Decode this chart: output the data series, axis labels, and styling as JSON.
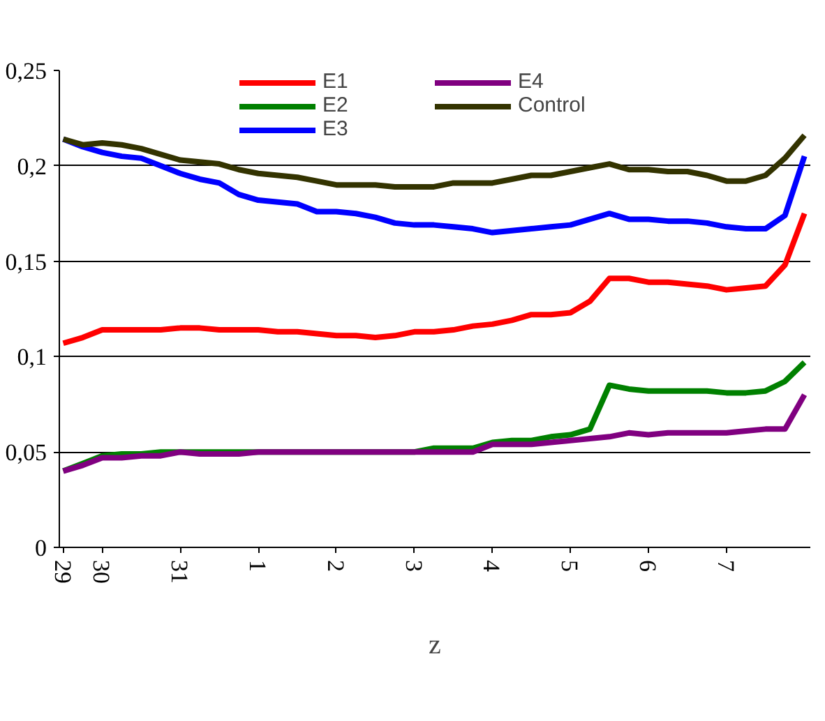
{
  "chart_data": {
    "type": "line",
    "xlabel": "z",
    "ylim": [
      0,
      0.25
    ],
    "categories": [
      "29",
      null,
      "30",
      null,
      null,
      null,
      "31",
      null,
      null,
      null,
      "1",
      null,
      null,
      null,
      "2",
      null,
      null,
      null,
      "3",
      null,
      null,
      null,
      "4",
      null,
      null,
      null,
      "5",
      null,
      null,
      null,
      "6",
      null,
      null,
      null,
      "7",
      null,
      null,
      null,
      null
    ],
    "yticks": [
      {
        "value": 0,
        "label": "0"
      },
      {
        "value": 0.05,
        "label": "0,05"
      },
      {
        "value": 0.1,
        "label": "0,1"
      },
      {
        "value": 0.15,
        "label": "0,15"
      },
      {
        "value": 0.2,
        "label": "0,2"
      },
      {
        "value": 0.25,
        "label": "0,25"
      }
    ],
    "grid": "y",
    "legend": "top",
    "marker": "none",
    "line_style": "solid",
    "series": [
      {
        "name": "E1",
        "color": "#ff0000",
        "values": [
          0.107,
          0.11,
          0.114,
          0.114,
          0.114,
          0.114,
          0.115,
          0.115,
          0.114,
          0.114,
          0.114,
          0.113,
          0.113,
          0.112,
          0.111,
          0.111,
          0.11,
          0.111,
          0.113,
          0.113,
          0.114,
          0.116,
          0.117,
          0.119,
          0.122,
          0.122,
          0.123,
          0.129,
          0.141,
          0.141,
          0.139,
          0.139,
          0.138,
          0.137,
          0.135,
          0.136,
          0.137,
          0.148,
          0.175
        ]
      },
      {
        "name": "E2",
        "color": "#008000",
        "values": [
          0.04,
          0.044,
          0.048,
          0.049,
          0.049,
          0.05,
          0.05,
          0.05,
          0.05,
          0.05,
          0.05,
          0.05,
          0.05,
          0.05,
          0.05,
          0.05,
          0.05,
          0.05,
          0.05,
          0.052,
          0.052,
          0.052,
          0.055,
          0.056,
          0.056,
          0.058,
          0.059,
          0.062,
          0.085,
          0.083,
          0.082,
          0.082,
          0.082,
          0.082,
          0.081,
          0.081,
          0.082,
          0.087,
          0.097
        ]
      },
      {
        "name": "E3",
        "color": "#0000ff",
        "values": [
          0.214,
          0.21,
          0.207,
          0.205,
          0.204,
          0.2,
          0.196,
          0.193,
          0.191,
          0.185,
          0.182,
          0.181,
          0.18,
          0.176,
          0.176,
          0.175,
          0.173,
          0.17,
          0.169,
          0.169,
          0.168,
          0.167,
          0.165,
          0.166,
          0.167,
          0.168,
          0.169,
          0.172,
          0.175,
          0.172,
          0.172,
          0.171,
          0.171,
          0.17,
          0.168,
          0.167,
          0.167,
          0.174,
          0.205
        ]
      },
      {
        "name": "E4",
        "color": "#800080",
        "values": [
          0.04,
          0.043,
          0.047,
          0.047,
          0.048,
          0.048,
          0.05,
          0.049,
          0.049,
          0.049,
          0.05,
          0.05,
          0.05,
          0.05,
          0.05,
          0.05,
          0.05,
          0.05,
          0.05,
          0.05,
          0.05,
          0.05,
          0.054,
          0.054,
          0.054,
          0.055,
          0.056,
          0.057,
          0.058,
          0.06,
          0.059,
          0.06,
          0.06,
          0.06,
          0.06,
          0.061,
          0.062,
          0.062,
          0.08
        ]
      },
      {
        "name": "Control",
        "color": "#333300",
        "values": [
          0.214,
          0.211,
          0.212,
          0.211,
          0.209,
          0.206,
          0.203,
          0.202,
          0.201,
          0.198,
          0.196,
          0.195,
          0.194,
          0.192,
          0.19,
          0.19,
          0.19,
          0.189,
          0.189,
          0.189,
          0.191,
          0.191,
          0.191,
          0.193,
          0.195,
          0.195,
          0.197,
          0.199,
          0.201,
          0.198,
          0.198,
          0.197,
          0.197,
          0.195,
          0.192,
          0.192,
          0.195,
          0.204,
          0.216
        ]
      }
    ]
  }
}
